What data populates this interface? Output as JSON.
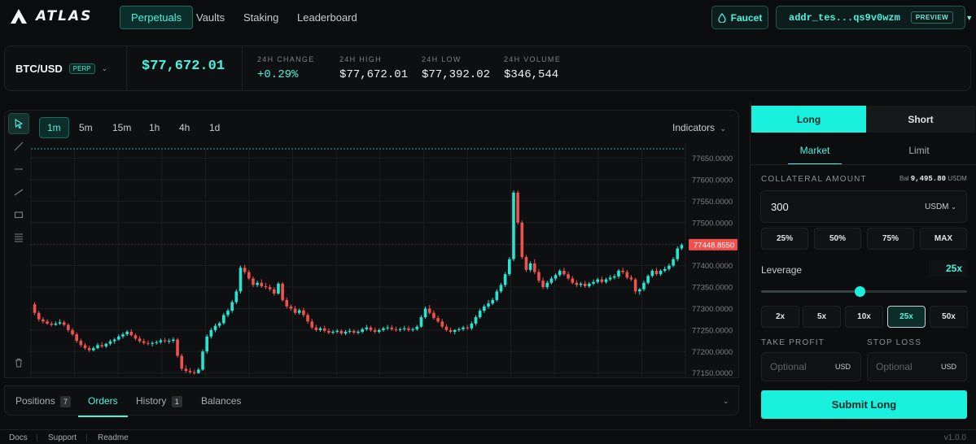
{
  "brand": {
    "name": "ATLAS"
  },
  "nav": {
    "tabs": [
      {
        "label": "Perpetuals",
        "active": true
      },
      {
        "label": "Vaults",
        "active": false
      },
      {
        "label": "Staking",
        "active": false
      },
      {
        "label": "Leaderboard",
        "active": false
      }
    ],
    "faucet_label": "Faucet",
    "wallet_address": "addr_tes...qs9v0wzm",
    "wallet_badge": "PREVIEW"
  },
  "market": {
    "pair": "BTC/USD",
    "pair_badge": "PERP",
    "mark_price": "$77,672.01",
    "stats": [
      {
        "label": "24H CHANGE",
        "value": "+0.29%",
        "positive": true
      },
      {
        "label": "24H HIGH",
        "value": "$77,672.01"
      },
      {
        "label": "24H LOW",
        "value": "$77,392.02"
      },
      {
        "label": "24H VOLUME",
        "value": "$346,544"
      }
    ]
  },
  "chart": {
    "timeframes": [
      "1m",
      "5m",
      "15m",
      "1h",
      "4h",
      "1d"
    ],
    "active_timeframe": "1m",
    "indicators_label": "Indicators",
    "colors": {
      "up": "#26e5d2",
      "down": "#f0514f",
      "grid": "#1b1f20",
      "current": "#f0514f"
    },
    "tools": [
      "cursor-icon",
      "trend-line-icon",
      "horizontal-line-icon",
      "ray-icon",
      "rectangle-icon",
      "fib-icon"
    ]
  },
  "chart_data": {
    "type": "candlestick",
    "ylim": [
      77140,
      77670
    ],
    "y_ticks": [
      "77650.0000",
      "77600.0000",
      "77550.0000",
      "77500.0000",
      "77450.0000",
      "77400.0000",
      "77350.0000",
      "77300.0000",
      "77250.0000",
      "77200.0000",
      "77150.0000"
    ],
    "current_price_label": "77448.8550",
    "current_price": 77448.855,
    "dotted_line_price": 77672,
    "candles": [
      [
        77310,
        77315,
        77290,
        77285
      ],
      [
        77290,
        77295,
        77275,
        77270
      ],
      [
        77275,
        77280,
        77270,
        77265
      ],
      [
        77270,
        77275,
        77265,
        77262
      ],
      [
        77265,
        77270,
        77262,
        77258
      ],
      [
        77262,
        77270,
        77265,
        77260
      ],
      [
        77265,
        77275,
        77268,
        77262
      ],
      [
        77268,
        77272,
        77262,
        77258
      ],
      [
        77262,
        77266,
        77250,
        77245
      ],
      [
        77250,
        77255,
        77240,
        77236
      ],
      [
        77240,
        77245,
        77225,
        77220
      ],
      [
        77225,
        77230,
        77215,
        77210
      ],
      [
        77215,
        77220,
        77208,
        77204
      ],
      [
        77208,
        77214,
        77203,
        77199
      ],
      [
        77203,
        77212,
        77208,
        77200
      ],
      [
        77208,
        77220,
        77215,
        77205
      ],
      [
        77215,
        77222,
        77212,
        77208
      ],
      [
        77212,
        77220,
        77218,
        77208
      ],
      [
        77218,
        77228,
        77224,
        77214
      ],
      [
        77224,
        77232,
        77228,
        77218
      ],
      [
        77228,
        77240,
        77235,
        77225
      ],
      [
        77235,
        77245,
        77240,
        77230
      ],
      [
        77240,
        77250,
        77246,
        77236
      ],
      [
        77246,
        77252,
        77238,
        77235
      ],
      [
        77238,
        77242,
        77230,
        77226
      ],
      [
        77230,
        77236,
        77224,
        77220
      ],
      [
        77224,
        77230,
        77220,
        77216
      ],
      [
        77220,
        77226,
        77218,
        77214
      ],
      [
        77218,
        77224,
        77220,
        77212
      ],
      [
        77220,
        77226,
        77222,
        77216
      ],
      [
        77222,
        77230,
        77226,
        77218
      ],
      [
        77226,
        77232,
        77224,
        77220
      ],
      [
        77224,
        77230,
        77225,
        77218
      ],
      [
        77225,
        77233,
        77228,
        77220
      ],
      [
        77228,
        77232,
        77190,
        77186
      ],
      [
        77190,
        77195,
        77160,
        77155
      ],
      [
        77160,
        77168,
        77155,
        77150
      ],
      [
        77155,
        77162,
        77152,
        77148
      ],
      [
        77152,
        77158,
        77150,
        77146
      ],
      [
        77150,
        77162,
        77158,
        77148
      ],
      [
        77158,
        77205,
        77200,
        77155
      ],
      [
        77200,
        77240,
        77235,
        77195
      ],
      [
        77235,
        77255,
        77250,
        77230
      ],
      [
        77250,
        77265,
        77260,
        77245
      ],
      [
        77260,
        77270,
        77266,
        77255
      ],
      [
        77266,
        77290,
        77285,
        77262
      ],
      [
        77285,
        77300,
        77295,
        77280
      ],
      [
        77295,
        77320,
        77315,
        77290
      ],
      [
        77315,
        77345,
        77340,
        77310
      ],
      [
        77340,
        77400,
        77395,
        77335
      ],
      [
        77395,
        77402,
        77385,
        77380
      ],
      [
        77385,
        77390,
        77370,
        77366
      ],
      [
        77370,
        77375,
        77355,
        77350
      ],
      [
        77355,
        77365,
        77360,
        77350
      ],
      [
        77360,
        77368,
        77352,
        77348
      ],
      [
        77352,
        77360,
        77350,
        77345
      ],
      [
        77350,
        77356,
        77345,
        77340
      ],
      [
        77345,
        77350,
        77335,
        77330
      ],
      [
        77335,
        77362,
        77358,
        77332
      ],
      [
        77358,
        77362,
        77320,
        77316
      ],
      [
        77320,
        77326,
        77305,
        77300
      ],
      [
        77305,
        77310,
        77300,
        77295
      ],
      [
        77300,
        77306,
        77290,
        77286
      ],
      [
        77290,
        77300,
        77296,
        77286
      ],
      [
        77296,
        77302,
        77285,
        77280
      ],
      [
        77285,
        77290,
        77270,
        77265
      ],
      [
        77270,
        77276,
        77256,
        77252
      ],
      [
        77256,
        77262,
        77250,
        77246
      ],
      [
        77250,
        77258,
        77254,
        77246
      ],
      [
        77254,
        77260,
        77248,
        77244
      ],
      [
        77248,
        77254,
        77244,
        77240
      ],
      [
        77244,
        77250,
        77246,
        77240
      ],
      [
        77246,
        77252,
        77248,
        77242
      ],
      [
        77248,
        77252,
        77242,
        77238
      ],
      [
        77242,
        77250,
        77246,
        77238
      ],
      [
        77246,
        77254,
        77248,
        77242
      ],
      [
        77248,
        77252,
        77244,
        77240
      ],
      [
        77244,
        77250,
        77246,
        77240
      ],
      [
        77246,
        77256,
        77252,
        77242
      ],
      [
        77252,
        77262,
        77256,
        77248
      ],
      [
        77256,
        77260,
        77250,
        77246
      ],
      [
        77250,
        77256,
        77246,
        77242
      ],
      [
        77246,
        77254,
        77250,
        77242
      ],
      [
        77250,
        77258,
        77254,
        77246
      ],
      [
        77254,
        77262,
        77256,
        77250
      ],
      [
        77256,
        77262,
        77252,
        77248
      ],
      [
        77252,
        77258,
        77250,
        77246
      ],
      [
        77250,
        77256,
        77252,
        77246
      ],
      [
        77252,
        77260,
        77254,
        77248
      ],
      [
        77254,
        77260,
        77250,
        77246
      ],
      [
        77250,
        77256,
        77252,
        77246
      ],
      [
        77252,
        77262,
        77258,
        77248
      ],
      [
        77258,
        77285,
        77280,
        77255
      ],
      [
        77280,
        77305,
        77300,
        77276
      ],
      [
        77300,
        77308,
        77290,
        77286
      ],
      [
        77290,
        77296,
        77278,
        77274
      ],
      [
        77278,
        77284,
        77270,
        77266
      ],
      [
        77270,
        77276,
        77258,
        77254
      ],
      [
        77258,
        77264,
        77250,
        77246
      ],
      [
        77250,
        77256,
        77246,
        77242
      ],
      [
        77246,
        77252,
        77250,
        77240
      ],
      [
        77250,
        77256,
        77252,
        77246
      ],
      [
        77252,
        77260,
        77256,
        77248
      ],
      [
        77256,
        77262,
        77254,
        77250
      ],
      [
        77254,
        77270,
        77265,
        77250
      ],
      [
        77265,
        77285,
        77280,
        77260
      ],
      [
        77280,
        77300,
        77295,
        77276
      ],
      [
        77295,
        77310,
        77305,
        77290
      ],
      [
        77305,
        77320,
        77312,
        77300
      ],
      [
        77312,
        77325,
        77320,
        77308
      ],
      [
        77320,
        77345,
        77340,
        77316
      ],
      [
        77340,
        77360,
        77355,
        77336
      ],
      [
        77355,
        77385,
        77380,
        77350
      ],
      [
        77380,
        77420,
        77415,
        77376
      ],
      [
        77415,
        77575,
        77570,
        77410
      ],
      [
        77570,
        77575,
        77500,
        77495
      ],
      [
        77500,
        77505,
        77420,
        77415
      ],
      [
        77420,
        77425,
        77390,
        77385
      ],
      [
        77390,
        77410,
        77405,
        77385
      ],
      [
        77405,
        77415,
        77385,
        77380
      ],
      [
        77385,
        77392,
        77365,
        77360
      ],
      [
        77365,
        77372,
        77350,
        77345
      ],
      [
        77350,
        77365,
        77360,
        77345
      ],
      [
        77360,
        77375,
        77370,
        77356
      ],
      [
        77370,
        77382,
        77378,
        77365
      ],
      [
        77378,
        77392,
        77388,
        77374
      ],
      [
        77388,
        77395,
        77380,
        77376
      ],
      [
        77380,
        77386,
        77370,
        77366
      ],
      [
        77370,
        77376,
        77360,
        77356
      ],
      [
        77360,
        77366,
        77355,
        77350
      ],
      [
        77355,
        77362,
        77358,
        77350
      ],
      [
        77358,
        77365,
        77352,
        77348
      ],
      [
        77352,
        77362,
        77358,
        77348
      ],
      [
        77358,
        77368,
        77362,
        77354
      ],
      [
        77362,
        77372,
        77368,
        77358
      ],
      [
        77368,
        77375,
        77362,
        77358
      ],
      [
        77362,
        77372,
        77368,
        77358
      ],
      [
        77368,
        77378,
        77372,
        77364
      ],
      [
        77372,
        77380,
        77375,
        77368
      ],
      [
        77375,
        77392,
        77388,
        77370
      ],
      [
        77388,
        77395,
        77385,
        77380
      ],
      [
        77385,
        77390,
        77372,
        77368
      ],
      [
        77372,
        77378,
        77368,
        77364
      ],
      [
        77368,
        77372,
        77340,
        77334
      ],
      [
        77340,
        77348,
        77345,
        77332
      ],
      [
        77345,
        77365,
        77360,
        77340
      ],
      [
        77360,
        77380,
        77376,
        77356
      ],
      [
        77376,
        77392,
        77388,
        77372
      ],
      [
        77388,
        77395,
        77380,
        77376
      ],
      [
        77380,
        77392,
        77388,
        77376
      ],
      [
        77388,
        77398,
        77392,
        77384
      ],
      [
        77392,
        77405,
        77400,
        77388
      ],
      [
        77400,
        77420,
        77415,
        77396
      ],
      [
        77415,
        77445,
        77440,
        77410
      ],
      [
        77440,
        77452,
        77448,
        77436
      ]
    ]
  },
  "bottom_tabs": [
    {
      "label": "Positions",
      "count": "7",
      "active": false
    },
    {
      "label": "Orders",
      "count": "",
      "active": true
    },
    {
      "label": "History",
      "count": "1",
      "active": false
    },
    {
      "label": "Balances",
      "count": "",
      "active": false
    }
  ],
  "order": {
    "side_long": "Long",
    "side_short": "Short",
    "type_market": "Market",
    "type_limit": "Limit",
    "collateral_label": "COLLATERAL AMOUNT",
    "balance_prefix": "Bal",
    "balance_value": "9,495.80",
    "balance_unit": "USDM",
    "collateral_value": "300",
    "collateral_unit": "USDM",
    "percent_buttons": [
      "25%",
      "50%",
      "75%",
      "MAX"
    ],
    "leverage_label": "Leverage",
    "leverage_value": "25x",
    "leverage_slider_fraction": 0.48,
    "leverage_buttons": [
      "2x",
      "5x",
      "10x",
      "25x",
      "50x"
    ],
    "leverage_active": "25x",
    "take_profit_label": "TAKE PROFIT",
    "stop_loss_label": "STOP LOSS",
    "tp_placeholder": "Optional",
    "sl_placeholder": "Optional",
    "tp_unit": "USD",
    "sl_unit": "USD",
    "submit_label": "Submit Long"
  },
  "footer": {
    "links": [
      "Docs",
      "Support",
      "Readme"
    ],
    "version": "v1.0.0"
  }
}
